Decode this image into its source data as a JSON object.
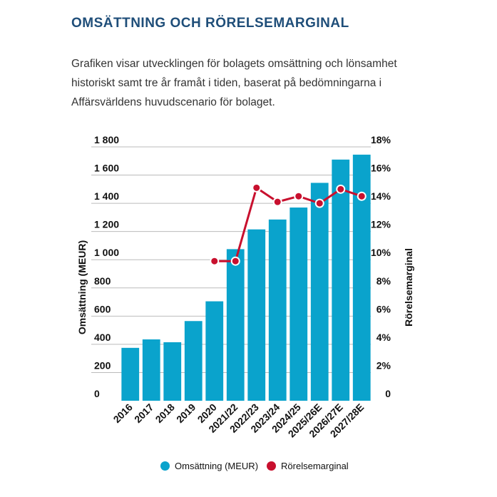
{
  "header": {
    "title": "OMSÄTTNING OCH RÖRELSEMARGINAL",
    "description": "Grafiken visar utvecklingen för bolagets omsättning och lönsamhet historiskt samt tre år framåt i tiden, baserat på bedömningarna i Affärsvärldens huvudscenario för bolaget."
  },
  "colors": {
    "bar": "#0aa3cc",
    "line": "#c8102e",
    "grid": "#bbbbbb"
  },
  "chart_data": {
    "type": "bar",
    "categories": [
      "2016",
      "2017",
      "2018",
      "2019",
      "2020",
      "2021/22",
      "2022/23",
      "2023/24",
      "2024/25",
      "2025/26E",
      "2026/27E",
      "2027/28E"
    ],
    "series": [
      {
        "name": "Omsättning (MEUR)",
        "type": "bar",
        "axis": "left",
        "values": [
          375,
          435,
          415,
          565,
          705,
          1075,
          1215,
          1285,
          1370,
          1545,
          1710,
          1745
        ]
      },
      {
        "name": "Rörelsemarginal",
        "type": "line",
        "axis": "right",
        "unit": "%",
        "values": [
          null,
          null,
          null,
          null,
          9.9,
          9.9,
          15.1,
          14.1,
          14.5,
          14.0,
          15.0,
          14.5
        ]
      }
    ],
    "ylabel": "Omsättning (MEUR)",
    "y2label": "Rörelsemarginal",
    "ylim": [
      0,
      1800
    ],
    "y2lim": [
      0,
      18
    ],
    "yticks": [
      "0",
      "200",
      "400",
      "600",
      "800",
      "1 000",
      "1 200",
      "1 400",
      "1 600",
      "1 800"
    ],
    "y2ticks": [
      "0",
      "2%",
      "4%",
      "6%",
      "8%",
      "10%",
      "12%",
      "14%",
      "16%",
      "18%"
    ],
    "grid": true,
    "legend": [
      "Omsättning (MEUR)",
      "Rörelsemarginal"
    ]
  }
}
